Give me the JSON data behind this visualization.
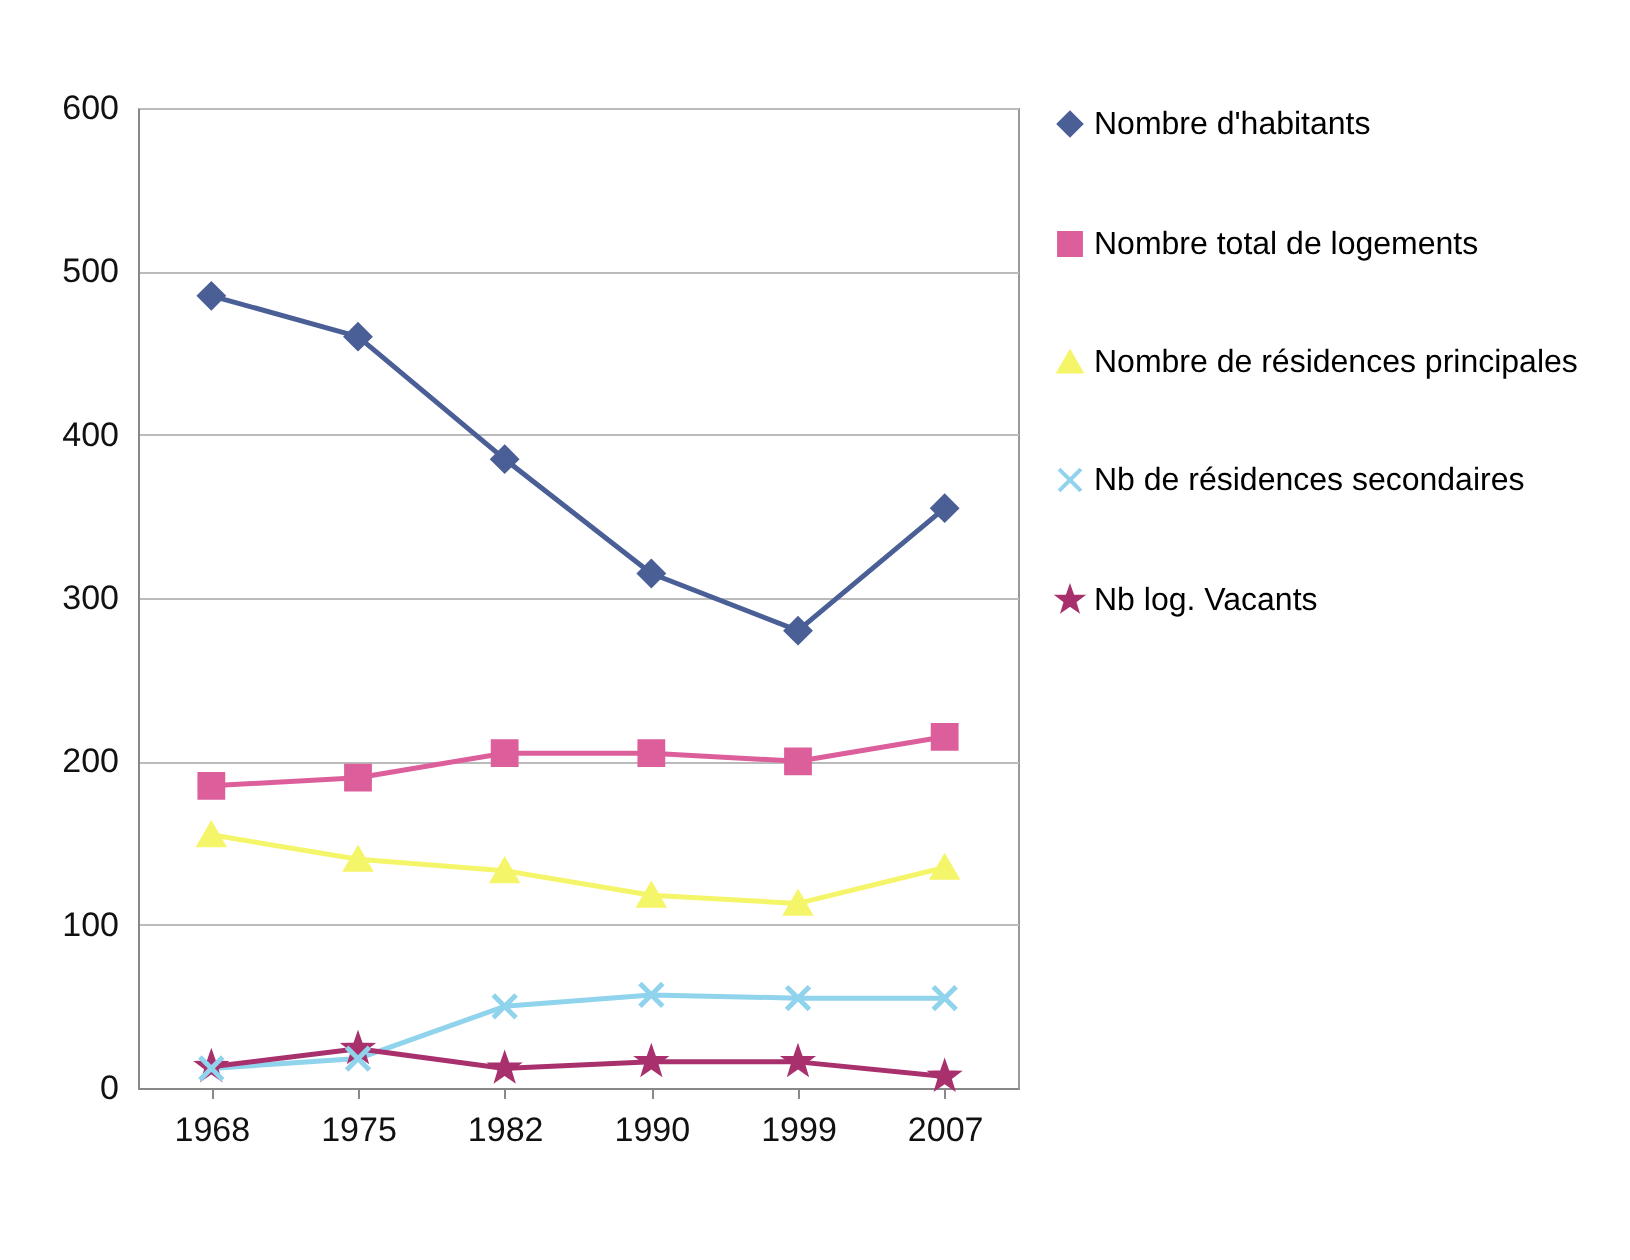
{
  "chart_data": {
    "type": "line",
    "categories": [
      "1968",
      "1975",
      "1982",
      "1990",
      "1999",
      "2007"
    ],
    "ylim": [
      0,
      600
    ],
    "yticks": [
      0,
      100,
      200,
      300,
      400,
      500,
      600
    ],
    "grid": "y",
    "legend": "right",
    "series": [
      {
        "name": "Nombre d'habitants",
        "color": "#4a5f96",
        "marker": "diamond",
        "values": [
          485,
          460,
          385,
          315,
          280,
          355
        ]
      },
      {
        "name": "Nombre total de logements",
        "color": "#dc5f9c",
        "marker": "square",
        "values": [
          185,
          190,
          205,
          205,
          200,
          215
        ]
      },
      {
        "name": "Nombre de résidences principales",
        "color": "#f5f56a",
        "marker": "triangle",
        "values": [
          155,
          140,
          133,
          118,
          113,
          135
        ]
      },
      {
        "name": "Nb de résidences secondaires",
        "color": "#8fd3ec",
        "marker": "cross",
        "values": [
          12,
          18,
          50,
          57,
          55,
          55
        ]
      },
      {
        "name": "Nb log. Vacants",
        "color": "#a8306c",
        "marker": "star",
        "values": [
          13,
          24,
          12,
          16,
          16,
          7
        ]
      }
    ]
  }
}
